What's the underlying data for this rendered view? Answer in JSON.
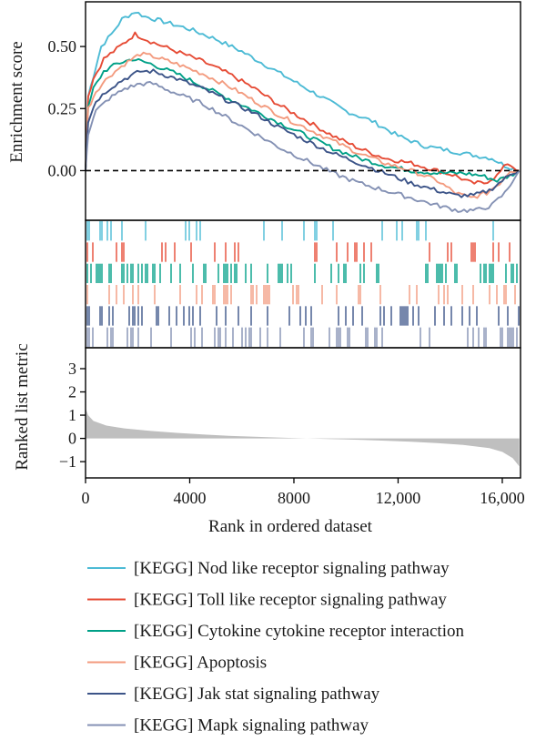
{
  "chart_data": {
    "type": "line",
    "subtype": "gsea-enrichment-plot",
    "x_axis": {
      "label": "Rank in ordered dataset",
      "ticks": [
        0,
        4000,
        8000,
        12000,
        16000
      ],
      "tick_labels": [
        "0",
        "4000",
        "8000",
        "12,000",
        "16,000"
      ],
      "range": [
        0,
        16700
      ]
    },
    "enrichment_panel": {
      "ylabel": "Enrichment score",
      "ylim": [
        -0.2,
        0.68
      ],
      "yticks": [
        0.0,
        0.25,
        0.5
      ],
      "ytick_labels": [
        "0.00",
        "0.25",
        "0.50"
      ],
      "zero_line": "dashed",
      "series": [
        {
          "name": "[KEGG] Nod like receptor signaling pathway",
          "color": "#4dbbd5",
          "points": [
            [
              0,
              0.0
            ],
            [
              100,
              0.3
            ],
            [
              300,
              0.38
            ],
            [
              600,
              0.5
            ],
            [
              1000,
              0.55
            ],
            [
              1400,
              0.61
            ],
            [
              1900,
              0.64
            ],
            [
              2300,
              0.62
            ],
            [
              3000,
              0.6
            ],
            [
              4000,
              0.57
            ],
            [
              5000,
              0.53
            ],
            [
              6000,
              0.48
            ],
            [
              7000,
              0.42
            ],
            [
              8000,
              0.36
            ],
            [
              9000,
              0.3
            ],
            [
              10000,
              0.24
            ],
            [
              11000,
              0.2
            ],
            [
              12000,
              0.14
            ],
            [
              13000,
              0.1
            ],
            [
              14000,
              0.08
            ],
            [
              15000,
              0.06
            ],
            [
              15600,
              0.05
            ],
            [
              16100,
              0.02
            ],
            [
              16650,
              0.0
            ]
          ]
        },
        {
          "name": "[KEGG] Toll like receptor signaling pathway",
          "color": "#e64b35",
          "points": [
            [
              0,
              0.0
            ],
            [
              100,
              0.3
            ],
            [
              300,
              0.37
            ],
            [
              700,
              0.45
            ],
            [
              1200,
              0.49
            ],
            [
              1900,
              0.55
            ],
            [
              2500,
              0.52
            ],
            [
              3500,
              0.48
            ],
            [
              4500,
              0.44
            ],
            [
              5500,
              0.39
            ],
            [
              6500,
              0.33
            ],
            [
              7500,
              0.26
            ],
            [
              8500,
              0.2
            ],
            [
              9500,
              0.14
            ],
            [
              10500,
              0.09
            ],
            [
              11500,
              0.05
            ],
            [
              12500,
              0.03
            ],
            [
              13500,
              0.0
            ],
            [
              14200,
              -0.02
            ],
            [
              14800,
              -0.05
            ],
            [
              15300,
              -0.05
            ],
            [
              15800,
              -0.02
            ],
            [
              16200,
              0.03
            ],
            [
              16650,
              0.0
            ]
          ]
        },
        {
          "name": "[KEGG] Cytokine cytokine receptor interaction",
          "color": "#00a087",
          "points": [
            [
              0,
              0.0
            ],
            [
              100,
              0.25
            ],
            [
              300,
              0.33
            ],
            [
              700,
              0.4
            ],
            [
              1200,
              0.43
            ],
            [
              1800,
              0.45
            ],
            [
              2500,
              0.43
            ],
            [
              3500,
              0.39
            ],
            [
              4500,
              0.34
            ],
            [
              5500,
              0.29
            ],
            [
              6500,
              0.24
            ],
            [
              7500,
              0.19
            ],
            [
              8500,
              0.14
            ],
            [
              9500,
              0.09
            ],
            [
              10500,
              0.05
            ],
            [
              11500,
              0.02
            ],
            [
              12500,
              0.0
            ],
            [
              13500,
              -0.01
            ],
            [
              14500,
              -0.01
            ],
            [
              15200,
              -0.02
            ],
            [
              15800,
              -0.04
            ],
            [
              16300,
              -0.02
            ],
            [
              16650,
              0.0
            ]
          ]
        },
        {
          "name": "[KEGG] Apoptosis",
          "color": "#f39b7f",
          "points": [
            [
              0,
              0.0
            ],
            [
              100,
              0.25
            ],
            [
              400,
              0.32
            ],
            [
              900,
              0.38
            ],
            [
              1500,
              0.43
            ],
            [
              2100,
              0.47
            ],
            [
              2600,
              0.46
            ],
            [
              3500,
              0.43
            ],
            [
              4500,
              0.39
            ],
            [
              5500,
              0.34
            ],
            [
              6500,
              0.28
            ],
            [
              7500,
              0.22
            ],
            [
              8500,
              0.17
            ],
            [
              9500,
              0.12
            ],
            [
              10500,
              0.07
            ],
            [
              11500,
              0.03
            ],
            [
              12500,
              0.0
            ],
            [
              13500,
              -0.04
            ],
            [
              14200,
              -0.09
            ],
            [
              14800,
              -0.11
            ],
            [
              15400,
              -0.09
            ],
            [
              15900,
              -0.05
            ],
            [
              16300,
              0.0
            ],
            [
              16650,
              0.0
            ]
          ]
        },
        {
          "name": "[KEGG] Jak stat signaling pathway",
          "color": "#3c5488",
          "points": [
            [
              0,
              0.0
            ],
            [
              100,
              0.2
            ],
            [
              400,
              0.28
            ],
            [
              900,
              0.33
            ],
            [
              1500,
              0.37
            ],
            [
              2100,
              0.4
            ],
            [
              2600,
              0.4
            ],
            [
              3500,
              0.37
            ],
            [
              4500,
              0.33
            ],
            [
              5500,
              0.28
            ],
            [
              6500,
              0.23
            ],
            [
              7500,
              0.17
            ],
            [
              8500,
              0.12
            ],
            [
              9500,
              0.07
            ],
            [
              10500,
              0.03
            ],
            [
              11500,
              -0.01
            ],
            [
              12500,
              -0.05
            ],
            [
              13500,
              -0.08
            ],
            [
              14200,
              -0.1
            ],
            [
              14900,
              -0.1
            ],
            [
              15500,
              -0.08
            ],
            [
              16000,
              -0.04
            ],
            [
              16400,
              -0.01
            ],
            [
              16650,
              0.0
            ]
          ]
        },
        {
          "name": "[KEGG] Mapk signaling pathway",
          "color": "#8491b4",
          "points": [
            [
              0,
              0.0
            ],
            [
              100,
              0.15
            ],
            [
              400,
              0.24
            ],
            [
              900,
              0.29
            ],
            [
              1500,
              0.33
            ],
            [
              2100,
              0.35
            ],
            [
              2600,
              0.35
            ],
            [
              3500,
              0.31
            ],
            [
              4500,
              0.27
            ],
            [
              5500,
              0.21
            ],
            [
              6500,
              0.15
            ],
            [
              7500,
              0.09
            ],
            [
              8500,
              0.04
            ],
            [
              9500,
              -0.01
            ],
            [
              10500,
              -0.05
            ],
            [
              11500,
              -0.08
            ],
            [
              12500,
              -0.11
            ],
            [
              13500,
              -0.14
            ],
            [
              14300,
              -0.16
            ],
            [
              15000,
              -0.16
            ],
            [
              15600,
              -0.14
            ],
            [
              16100,
              -0.09
            ],
            [
              16400,
              -0.04
            ],
            [
              16650,
              0.0
            ]
          ]
        }
      ]
    },
    "hit_panel": {
      "rows": [
        {
          "color": "#4dbbd5",
          "density": 0.22,
          "front_bias": 0.55
        },
        {
          "color": "#e64b35",
          "density": 0.3,
          "front_bias": 0.45
        },
        {
          "color": "#00a087",
          "density": 0.55,
          "front_bias": 0.3
        },
        {
          "color": "#f39b7f",
          "density": 0.38,
          "front_bias": 0.35
        },
        {
          "color": "#3c5488",
          "density": 0.48,
          "front_bias": 0.25
        },
        {
          "color": "#8491b4",
          "density": 0.62,
          "front_bias": 0.15
        }
      ]
    },
    "ranked_panel": {
      "ylabel": "Ranked list metric",
      "ylim": [
        -1.7,
        3.9
      ],
      "yticks": [
        -1,
        0,
        1,
        2,
        3
      ],
      "ytick_labels": [
        "−1",
        "0",
        "1",
        "2",
        "3"
      ],
      "fill_color": "#bfbfbf",
      "points": [
        [
          0,
          1.3
        ],
        [
          100,
          1.0
        ],
        [
          300,
          0.75
        ],
        [
          800,
          0.55
        ],
        [
          1500,
          0.43
        ],
        [
          2500,
          0.32
        ],
        [
          3500,
          0.24
        ],
        [
          4500,
          0.17
        ],
        [
          5500,
          0.11
        ],
        [
          6500,
          0.07
        ],
        [
          7500,
          0.03
        ],
        [
          8500,
          0.0
        ],
        [
          9500,
          -0.03
        ],
        [
          10500,
          -0.06
        ],
        [
          11500,
          -0.1
        ],
        [
          12500,
          -0.14
        ],
        [
          13500,
          -0.2
        ],
        [
          14500,
          -0.28
        ],
        [
          15500,
          -0.42
        ],
        [
          16000,
          -0.58
        ],
        [
          16400,
          -0.85
        ],
        [
          16650,
          -1.2
        ]
      ]
    },
    "legend": {
      "placement": "below",
      "entries": [
        {
          "label": "[KEGG] Nod like receptor signaling pathway",
          "color": "#4dbbd5"
        },
        {
          "label": "[KEGG] Toll like receptor signaling pathway",
          "color": "#e64b35"
        },
        {
          "label": "[KEGG] Cytokine cytokine receptor interaction",
          "color": "#00a087"
        },
        {
          "label": "[KEGG] Apoptosis",
          "color": "#f39b7f"
        },
        {
          "label": "[KEGG] Jak stat signaling pathway",
          "color": "#3c5488"
        },
        {
          "label": "[KEGG] Mapk signaling pathway",
          "color": "#8491b4"
        }
      ]
    }
  }
}
